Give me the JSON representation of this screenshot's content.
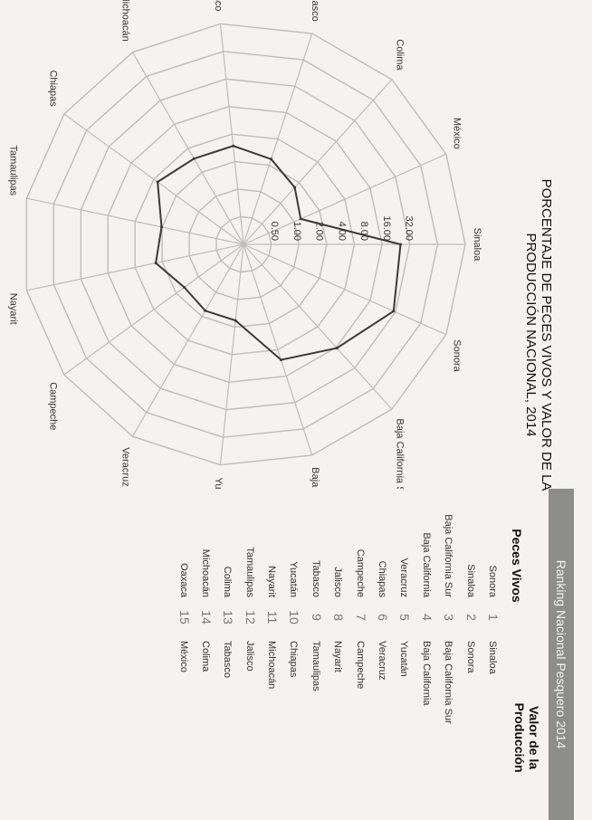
{
  "chart_data": {
    "type": "radar",
    "title": "PORCENTAJE DE PECES VIVOS Y VALOR DE LA PRODUCCIÓN NACIONAL, 2014",
    "scale": "log2",
    "tick_labels": [
      "0.50",
      "1.00",
      "2.00",
      "4.00",
      "8.00",
      "16.00",
      "32.00"
    ],
    "categories": [
      "Sinaloa",
      "Sonora",
      "Baja California Sur",
      "Baja California",
      "Yucatán",
      "Veracruz",
      "Campeche",
      "Nayarit",
      "Tamaulipas",
      "Chiapas",
      "Michoacán",
      "Jalisco",
      "Tabasco",
      "Colima",
      "México"
    ],
    "series": [
      {
        "values": [
          24,
          30,
          14,
          8,
          2,
          2,
          1.8,
          3,
          2.5,
          5,
          4,
          4,
          3,
          2,
          1.3
        ]
      }
    ]
  },
  "table": {
    "banner": "Ranking Nacional Pesquero 2014",
    "left_header": "Peces Vivos",
    "right_header_line1": "Valor de la",
    "right_header_line2": "Producción",
    "rows": [
      {
        "left": "Sonora",
        "rank": "1",
        "right": "Sinaloa"
      },
      {
        "left": "Sinaloa",
        "rank": "2",
        "right": "Sonora"
      },
      {
        "left": "Baja California Sur",
        "rank": "3",
        "right": "Baja California Sur"
      },
      {
        "left": "Baja California",
        "rank": "4",
        "right": "Baja California"
      },
      {
        "left": "Veracruz",
        "rank": "5",
        "right": "Yucatán"
      },
      {
        "left": "Chiapas",
        "rank": "6",
        "right": "Veracruz"
      },
      {
        "left": "Campeche",
        "rank": "7",
        "right": "Campeche"
      },
      {
        "left": "Jalisco",
        "rank": "8",
        "right": "Nayarit"
      },
      {
        "left": "Tabasco",
        "rank": "9",
        "right": "Tamaulipas"
      },
      {
        "left": "Yucatán",
        "rank": "10",
        "right": "Chiapas"
      },
      {
        "left": "Nayarit",
        "rank": "11",
        "right": "Michoacán"
      },
      {
        "left": "Tamaulipas",
        "rank": "12",
        "right": "Jalisco"
      },
      {
        "left": "Colima",
        "rank": "13",
        "right": "Tabasco"
      },
      {
        "left": "Michoacán",
        "rank": "14",
        "right": "Colima"
      },
      {
        "left": "Oaxaca",
        "rank": "15",
        "right": "México"
      }
    ]
  },
  "colors": {
    "series": "#3a3a3a",
    "grid": "#bdbdbd",
    "banner": "#8d8d8b"
  }
}
